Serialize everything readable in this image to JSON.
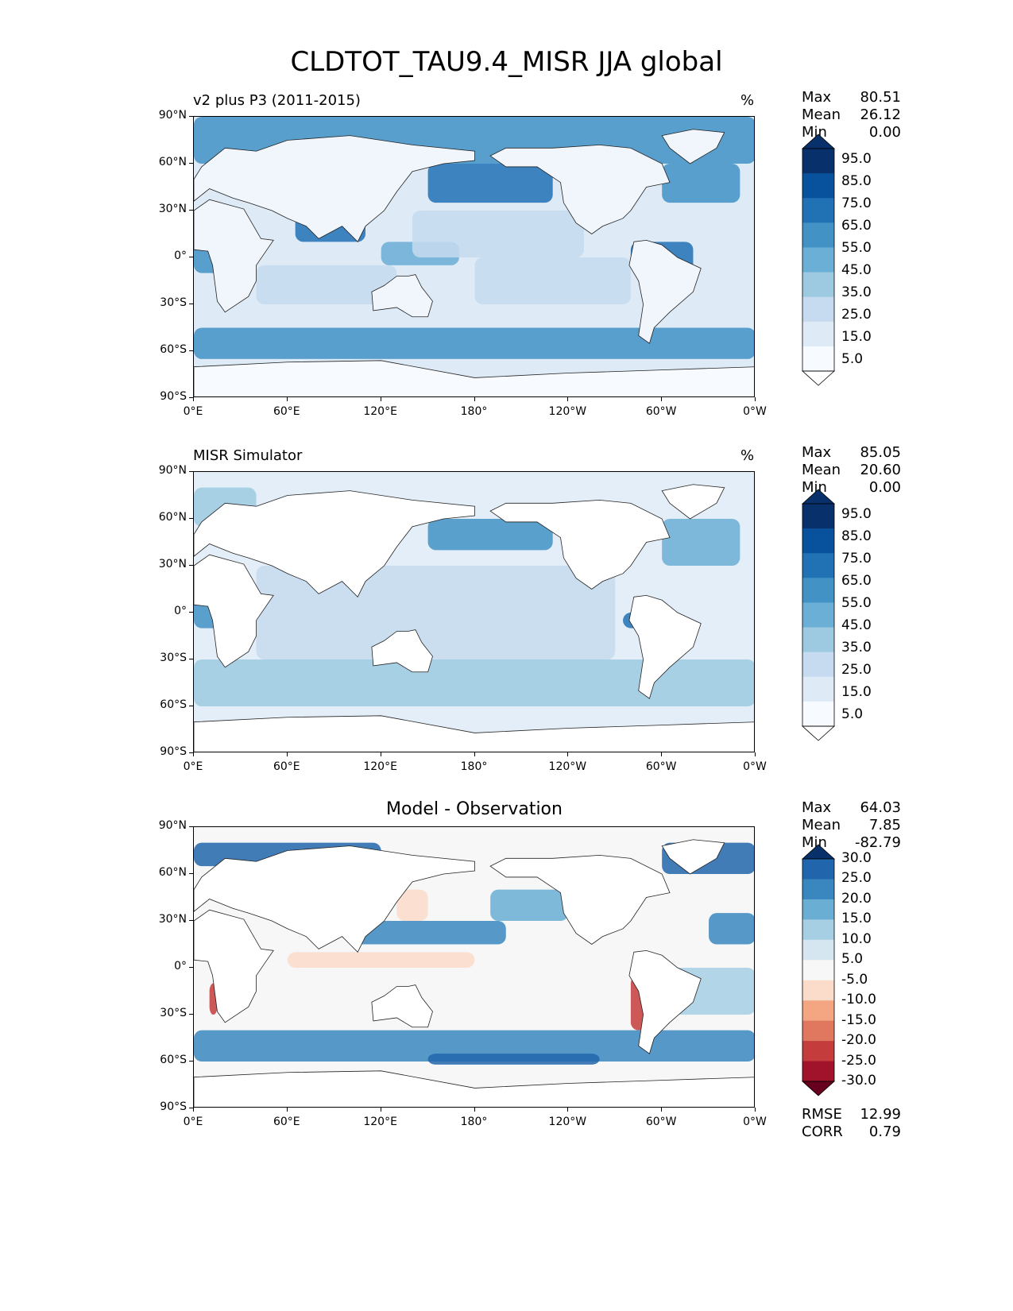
{
  "title": "CLDTOT_TAU9.4_MISR JJA global",
  "latitude_ticks": [
    "90°N",
    "60°N",
    "30°N",
    "0°",
    "30°S",
    "60°S",
    "90°S"
  ],
  "longitude_ticks": [
    "0°E",
    "60°E",
    "120°E",
    "180°",
    "120°W",
    "60°W",
    "0°W"
  ],
  "panels": [
    {
      "id": "test",
      "label": "v2 plus P3 (2011-2015)",
      "center_title": "",
      "units": "%",
      "stats": [
        {
          "name": "Max",
          "value": "80.51"
        },
        {
          "name": "Mean",
          "value": "26.12"
        },
        {
          "name": "Min",
          "value": "0.00"
        }
      ],
      "colorbar": {
        "labels": [
          "95.0",
          "85.0",
          "75.0",
          "65.0",
          "55.0",
          "45.0",
          "35.0",
          "25.0",
          "15.0",
          "5.0"
        ],
        "colors": [
          "#08306b",
          "#08519c",
          "#2171b5",
          "#4292c6",
          "#6baed6",
          "#9ecae1",
          "#c6dbef",
          "#deebf7",
          "#f7fbff"
        ],
        "extend_colors": {
          "top": "#08306b",
          "bottom": "#ffffff"
        }
      },
      "metrics": []
    },
    {
      "id": "reference",
      "label": "MISR Simulator",
      "center_title": "",
      "units": "%",
      "stats": [
        {
          "name": "Max",
          "value": "85.05"
        },
        {
          "name": "Mean",
          "value": "20.60"
        },
        {
          "name": "Min",
          "value": "0.00"
        }
      ],
      "colorbar": {
        "labels": [
          "95.0",
          "85.0",
          "75.0",
          "65.0",
          "55.0",
          "45.0",
          "35.0",
          "25.0",
          "15.0",
          "5.0"
        ],
        "colors": [
          "#08306b",
          "#08519c",
          "#2171b5",
          "#4292c6",
          "#6baed6",
          "#9ecae1",
          "#c6dbef",
          "#deebf7",
          "#f7fbff"
        ],
        "extend_colors": {
          "top": "#08306b",
          "bottom": "#ffffff"
        }
      },
      "metrics": []
    },
    {
      "id": "difference",
      "label": "",
      "center_title": "Model - Observation",
      "units": "",
      "stats": [
        {
          "name": "Max",
          "value": "64.03"
        },
        {
          "name": "Mean",
          "value": "7.85"
        },
        {
          "name": "Min",
          "value": "-82.79"
        }
      ],
      "colorbar": {
        "labels": [
          "30.0",
          "25.0",
          "20.0",
          "15.0",
          "10.0",
          "5.0",
          "-5.0",
          "-10.0",
          "-15.0",
          "-20.0",
          "-25.0",
          "-30.0"
        ],
        "colors": [
          "#2166ac",
          "#3a87c0",
          "#6aaed4",
          "#a6cfe4",
          "#d5e6f1",
          "#f7f7f7",
          "#fbdccb",
          "#f4a683",
          "#e07860",
          "#c43c3c",
          "#a1122b"
        ],
        "extend_colors": {
          "top": "#08306b",
          "bottom": "#67001f"
        }
      },
      "metrics": [
        {
          "name": "RMSE",
          "value": "12.99"
        },
        {
          "name": "CORR",
          "value": "0.79"
        }
      ]
    }
  ],
  "map_fields": {
    "test": [
      {
        "lat": [
          60,
          90
        ],
        "lon": [
          0,
          360
        ],
        "level": 5
      },
      {
        "lat": [
          35,
          60
        ],
        "lon": [
          150,
          230
        ],
        "level": 6
      },
      {
        "lat": [
          35,
          60
        ],
        "lon": [
          300,
          350
        ],
        "level": 5
      },
      {
        "lat": [
          10,
          30
        ],
        "lon": [
          65,
          110
        ],
        "level": 6
      },
      {
        "lat": [
          -10,
          10
        ],
        "lon": [
          0,
          40
        ],
        "level": 5
      },
      {
        "lat": [
          -10,
          10
        ],
        "lon": [
          280,
          320
        ],
        "level": 6
      },
      {
        "lat": [
          -45,
          -65
        ],
        "lon": [
          0,
          360
        ],
        "level": 5
      },
      {
        "lat": [
          -5,
          10
        ],
        "lon": [
          120,
          170
        ],
        "level": 4
      },
      {
        "lat": [
          -30,
          -5
        ],
        "lon": [
          40,
          130
        ],
        "level": 2
      },
      {
        "lat": [
          -30,
          0
        ],
        "lon": [
          180,
          280
        ],
        "level": 2
      },
      {
        "lat": [
          0,
          30
        ],
        "lon": [
          140,
          250
        ],
        "level": 2
      },
      {
        "lat": [
          -90,
          -65
        ],
        "lon": [
          0,
          360
        ],
        "level": 1
      }
    ],
    "reference": [
      {
        "lat": [
          55,
          80
        ],
        "lon": [
          0,
          40
        ],
        "level": 3
      },
      {
        "lat": [
          40,
          60
        ],
        "lon": [
          150,
          230
        ],
        "level": 5
      },
      {
        "lat": [
          30,
          60
        ],
        "lon": [
          300,
          350
        ],
        "level": 4
      },
      {
        "lat": [
          -10,
          0
        ],
        "lon": [
          275,
          290
        ],
        "level": 6
      },
      {
        "lat": [
          -10,
          10
        ],
        "lon": [
          0,
          20
        ],
        "level": 5
      },
      {
        "lat": [
          -60,
          -30
        ],
        "lon": [
          0,
          360
        ],
        "level": 3
      },
      {
        "lat": [
          -30,
          30
        ],
        "lon": [
          40,
          270
        ],
        "level": 2
      }
    ],
    "difference": [
      {
        "lat": [
          65,
          80
        ],
        "lon": [
          0,
          120
        ],
        "level": 0
      },
      {
        "lat": [
          60,
          80
        ],
        "lon": [
          300,
          360
        ],
        "level": 0
      },
      {
        "lat": [
          15,
          30
        ],
        "lon": [
          100,
          200
        ],
        "level": 1
      },
      {
        "lat": [
          30,
          50
        ],
        "lon": [
          190,
          240
        ],
        "level": 2
      },
      {
        "lat": [
          15,
          35
        ],
        "lon": [
          330,
          360
        ],
        "level": 1
      },
      {
        "lat": [
          -60,
          -40
        ],
        "lon": [
          0,
          360
        ],
        "level": 1
      },
      {
        "lat": [
          -62,
          -55
        ],
        "lon": [
          150,
          260
        ],
        "level": 0
      },
      {
        "lat": [
          -40,
          -5
        ],
        "lon": [
          280,
          290
        ],
        "level": 9
      },
      {
        "lat": [
          -30,
          -10
        ],
        "lon": [
          10,
          15
        ],
        "level": 9
      },
      {
        "lat": [
          0,
          10
        ],
        "lon": [
          60,
          180
        ],
        "level": 6
      },
      {
        "lat": [
          30,
          50
        ],
        "lon": [
          130,
          150
        ],
        "level": 6
      },
      {
        "lat": [
          -30,
          0
        ],
        "lon": [
          300,
          360
        ],
        "level": 3
      }
    ]
  }
}
